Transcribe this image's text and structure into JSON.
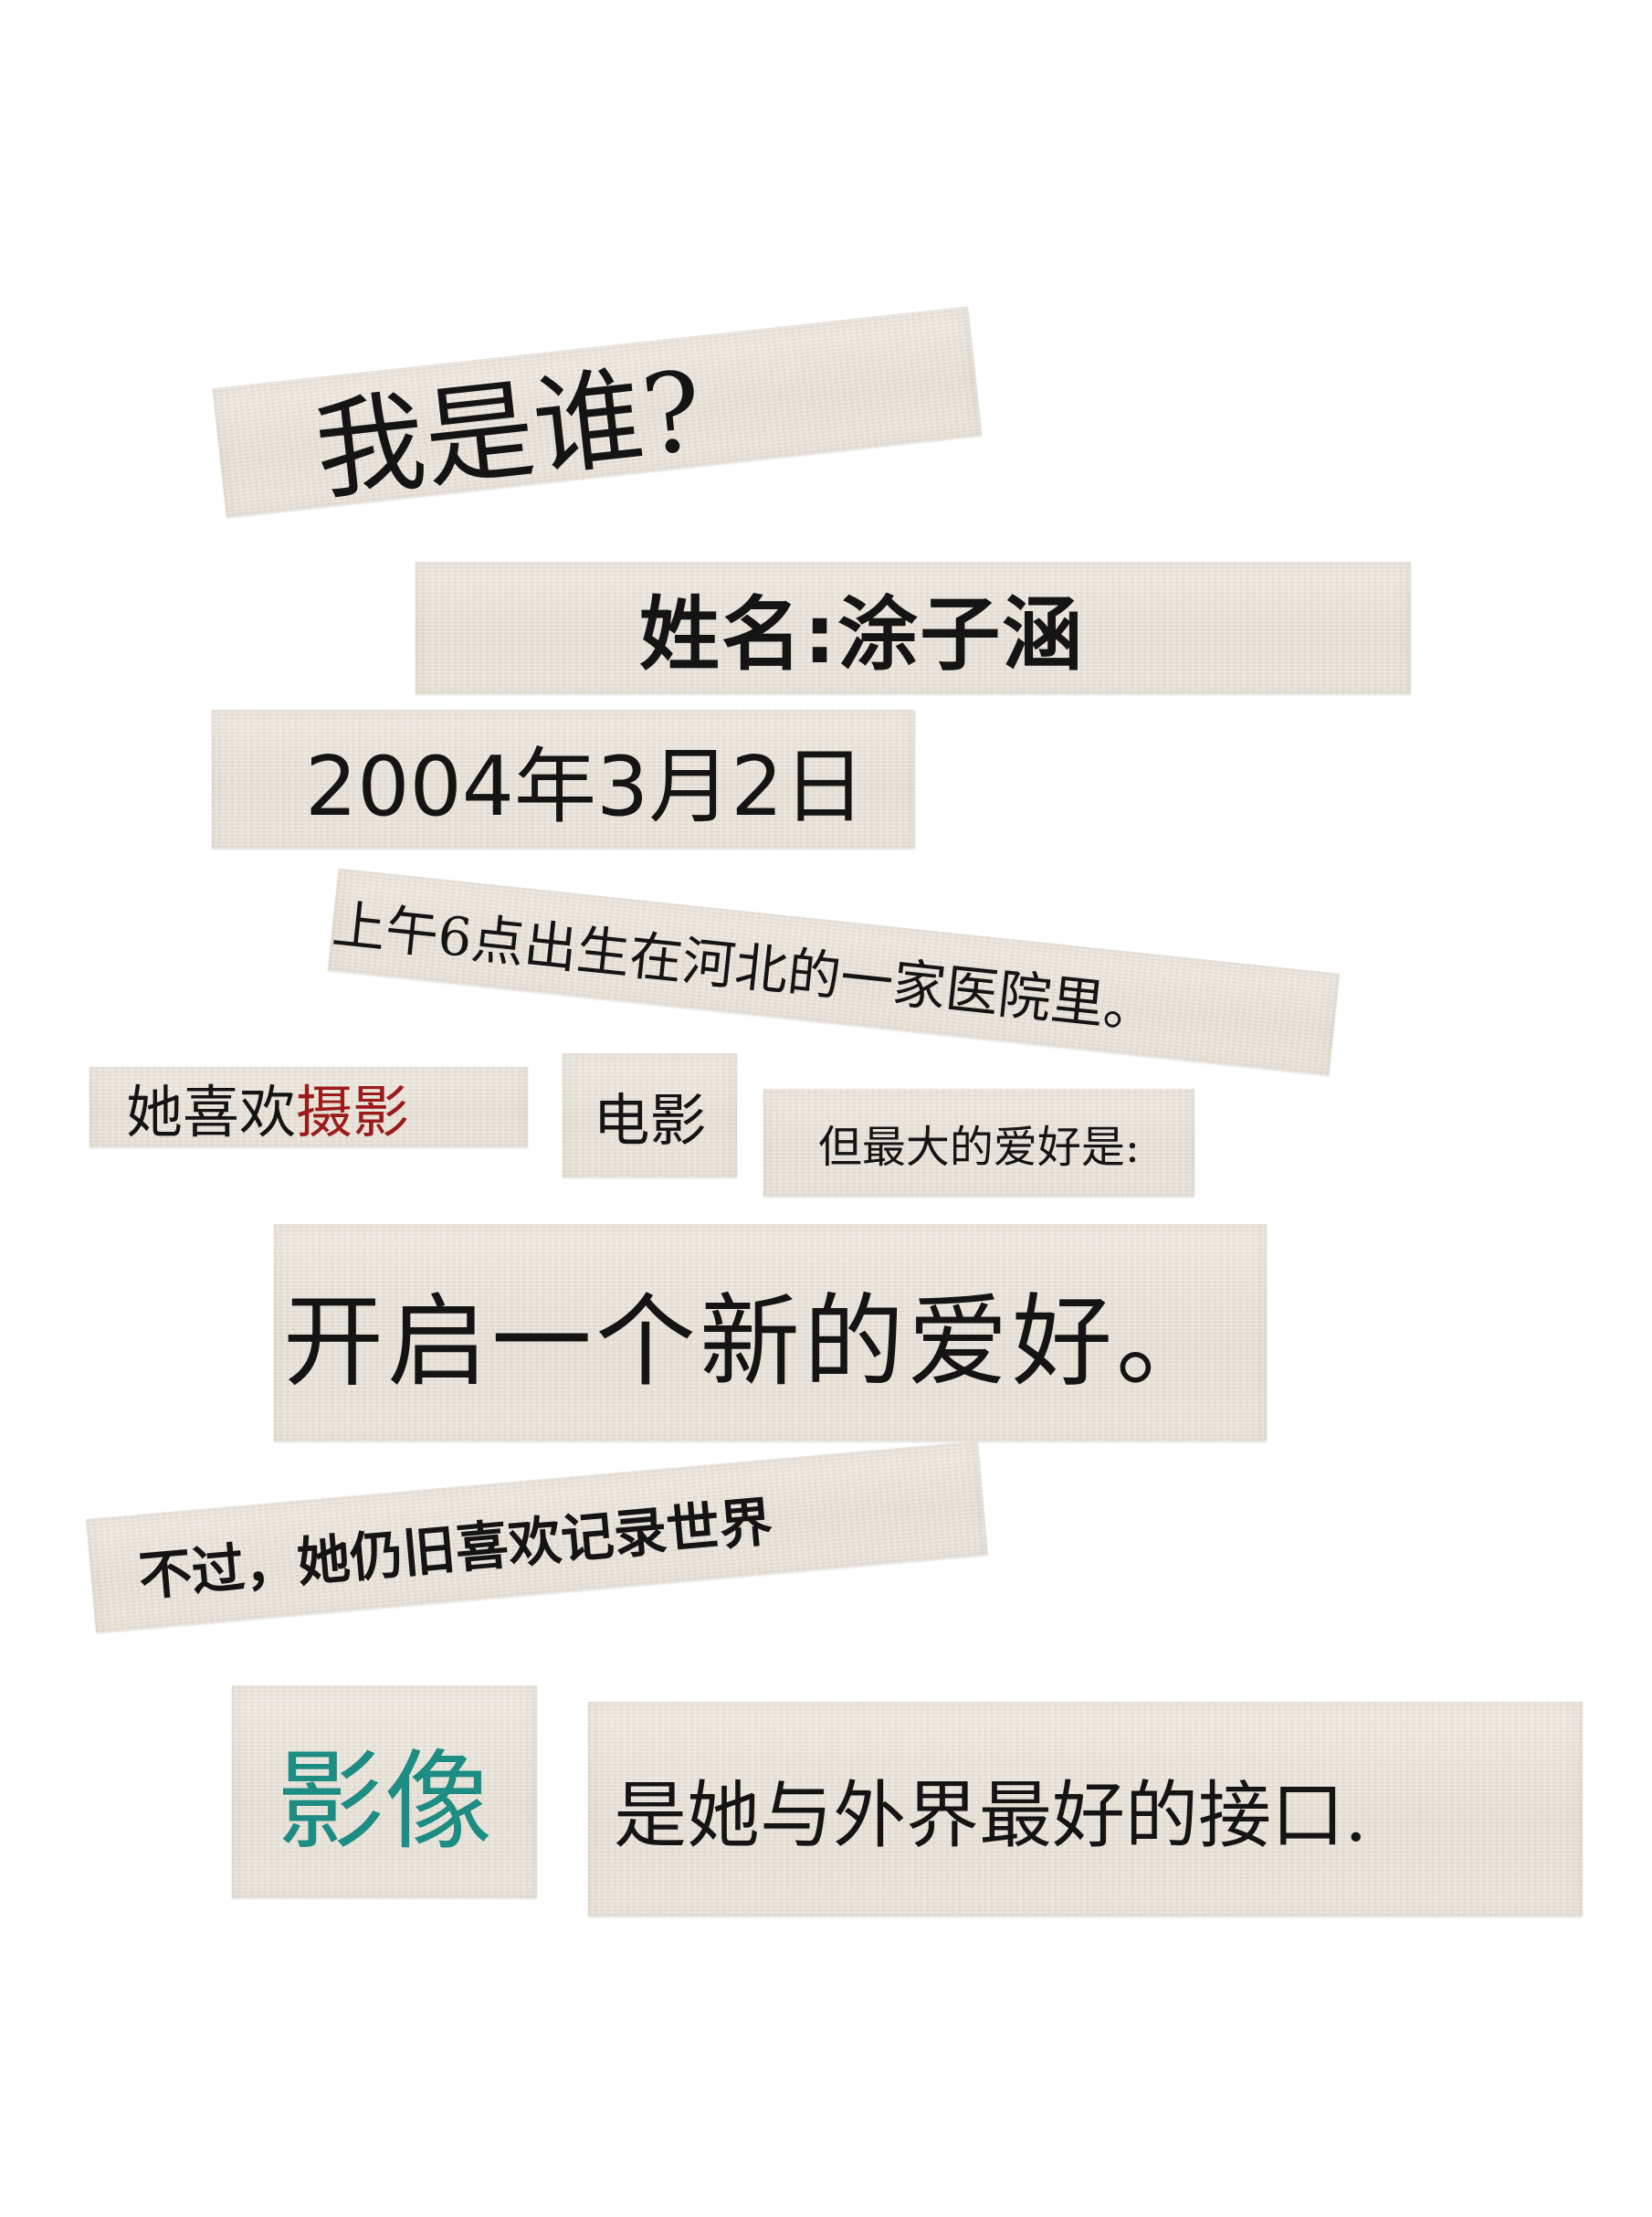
{
  "strips": {
    "who": "我是谁?",
    "name": "姓名:涂子涵",
    "birthday": "2004年3月2日",
    "birthplace": "上午6点出生在河北的一家医院里。",
    "likes_prefix": "她喜欢",
    "likes_highlight": "摄影",
    "film": "电影",
    "biggest": "但最大的爱好是:",
    "new_hobby": "开启一个新的爱好。",
    "still_likes": "不过，她仍旧喜欢记录世界",
    "image_word": "影像",
    "interface": "是她与外界最好的接口."
  },
  "colors": {
    "paper": "#ebe6dc",
    "text": "#141414",
    "highlight_red": "#9b1b1b",
    "teal": "#1d8c82"
  }
}
